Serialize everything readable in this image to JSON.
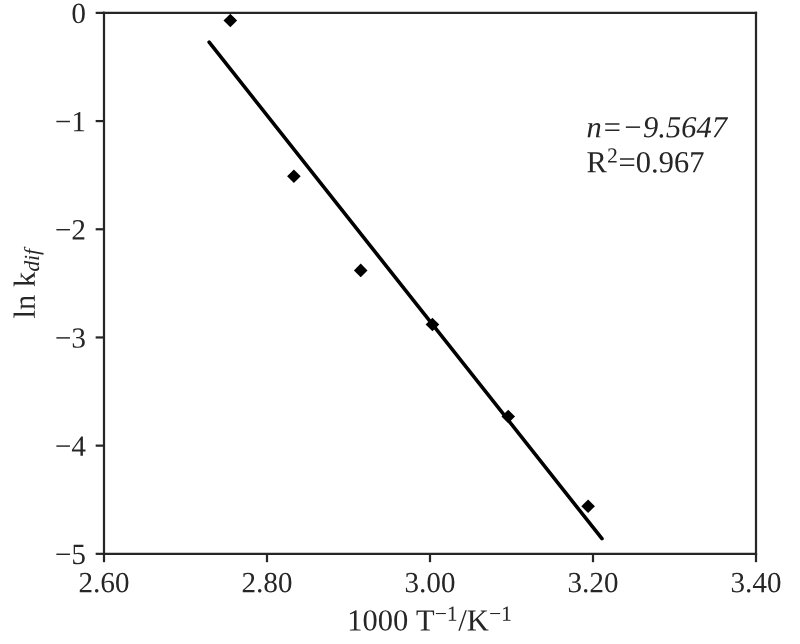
{
  "chart_data": {
    "type": "scatter",
    "xlabel": "1000 T$^{−1}$/K$^{−1}$",
    "ylabel": "ln k$_{dif}$",
    "xlim": [
      2.6,
      3.4
    ],
    "xticks": [
      {
        "value": 2.6,
        "label": "2.60"
      },
      {
        "value": 2.8,
        "label": "2.80"
      },
      {
        "value": 3.0,
        "label": "3.00"
      },
      {
        "value": 3.2,
        "label": "3.20"
      },
      {
        "value": 3.4,
        "label": "3.40"
      }
    ],
    "ylim": [
      -5,
      0
    ],
    "yticks": [
      {
        "value": -5,
        "label": "−5"
      },
      {
        "value": -4,
        "label": "−4"
      },
      {
        "value": -3,
        "label": "−3"
      },
      {
        "value": -2,
        "label": "−2"
      },
      {
        "value": -1,
        "label": "−1"
      },
      0
    ],
    "grid": false,
    "legend": false,
    "series": [
      {
        "color": "#000000",
        "marker": "diamond",
        "x": [
          2.755,
          2.833,
          2.915,
          3.003,
          3.096,
          3.194
        ],
        "values": [
          -0.07,
          -1.51,
          -2.38,
          -2.88,
          -3.73,
          -4.56
        ]
      },
      {
        "type": "line",
        "color": "#000000",
        "marker": "none",
        "line_style": "solid",
        "x": [
          2.729,
          3.211
        ],
        "values": [
          -0.27,
          -4.86
        ]
      }
    ],
    "annotations": [
      "n=−9.5647",
      "R$^{2}$=0.967"
    ]
  }
}
